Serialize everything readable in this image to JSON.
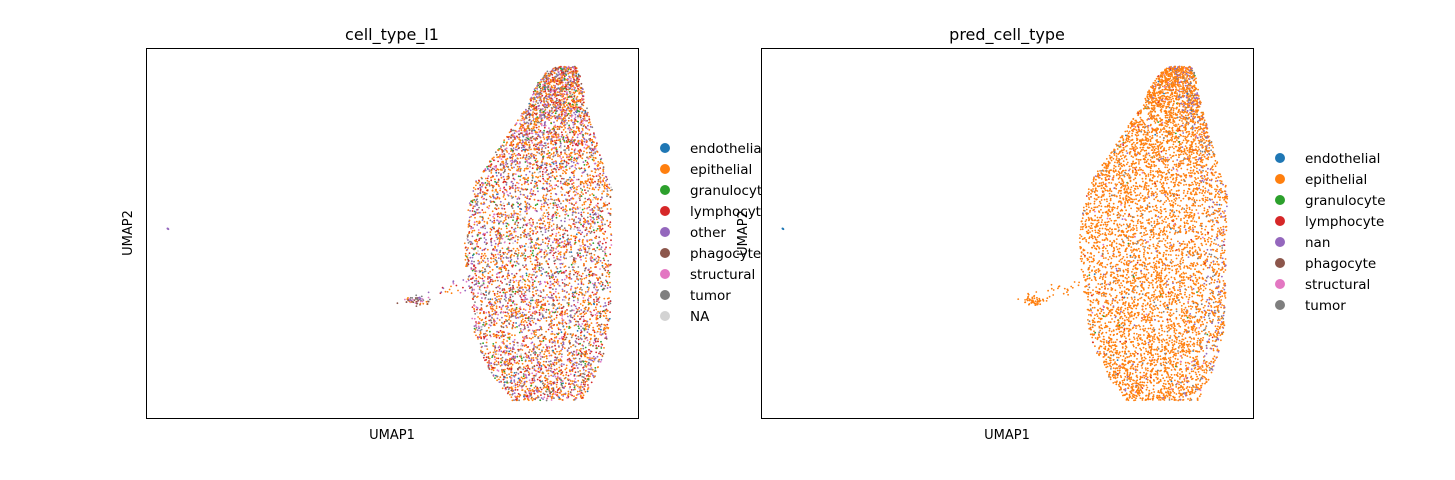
{
  "chart_data": [
    {
      "type": "scatter",
      "title": "cell_type_l1",
      "xlabel": "UMAP1",
      "ylabel": "UMAP2",
      "legend_placement": "right",
      "grid": false,
      "ticks": false,
      "categories": [
        {
          "name": "endothelial",
          "color": "#1f77b4"
        },
        {
          "name": "epithelial",
          "color": "#ff7f0e"
        },
        {
          "name": "granulocyte",
          "color": "#2ca02c"
        },
        {
          "name": "lymphocyte",
          "color": "#d62728"
        },
        {
          "name": "other",
          "color": "#9467bd"
        },
        {
          "name": "phagocyte",
          "color": "#8c564b"
        },
        {
          "name": "structural",
          "color": "#e377c2"
        },
        {
          "name": "tumor",
          "color": "#7f7f7f"
        },
        {
          "name": "NA",
          "color": "#d3d3d3"
        }
      ]
    },
    {
      "type": "scatter",
      "title": "pred_cell_type",
      "xlabel": "UMAP1",
      "ylabel": "UMAP2",
      "legend_placement": "right",
      "grid": false,
      "ticks": false,
      "categories": [
        {
          "name": "endothelial",
          "color": "#1f77b4"
        },
        {
          "name": "epithelial",
          "color": "#ff7f0e"
        },
        {
          "name": "granulocyte",
          "color": "#2ca02c"
        },
        {
          "name": "lymphocyte",
          "color": "#d62728"
        },
        {
          "name": "nan",
          "color": "#9467bd"
        },
        {
          "name": "phagocyte",
          "color": "#8c564b"
        },
        {
          "name": "structural",
          "color": "#e377c2"
        },
        {
          "name": "tumor",
          "color": "#7f7f7f"
        }
      ]
    }
  ]
}
